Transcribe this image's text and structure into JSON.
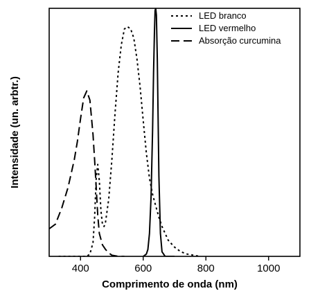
{
  "chart_data": {
    "type": "line",
    "title": "",
    "xlabel": "Comprimento de onda (nm)",
    "ylabel": "Intensidade (un. arbtr.)",
    "xlim": [
      300,
      1100
    ],
    "ylim": [
      0,
      1.08
    ],
    "x_ticks": [
      400,
      600,
      800,
      1000
    ],
    "y_ticks": [],
    "grid": false,
    "legend_position": "top-right",
    "series": [
      {
        "name": "LED branco",
        "line_style": "dotted",
        "color": "#000000",
        "x": [
          330,
          400,
          420,
          430,
          440,
          445,
          450,
          455,
          460,
          465,
          470,
          475,
          480,
          490,
          500,
          510,
          520,
          530,
          540,
          550,
          560,
          570,
          580,
          590,
          600,
          610,
          620,
          630,
          640,
          650,
          660,
          670,
          680,
          700,
          720,
          740,
          760,
          780
        ],
        "y": [
          0.0,
          0.0,
          0.0,
          0.01,
          0.06,
          0.17,
          0.34,
          0.4,
          0.33,
          0.2,
          0.14,
          0.13,
          0.15,
          0.25,
          0.42,
          0.62,
          0.8,
          0.92,
          0.99,
          1.0,
          0.99,
          0.95,
          0.86,
          0.74,
          0.59,
          0.45,
          0.34,
          0.27,
          0.22,
          0.17,
          0.13,
          0.1,
          0.07,
          0.04,
          0.02,
          0.01,
          0.005,
          0.0
        ]
      },
      {
        "name": "LED vermelho",
        "line_style": "solid",
        "color": "#000000",
        "x": [
          600,
          610,
          615,
          620,
          625,
          630,
          633,
          636,
          638,
          640,
          642,
          645,
          648,
          650,
          655,
          660,
          670,
          700
        ],
        "y": [
          0.0,
          0.01,
          0.03,
          0.1,
          0.26,
          0.55,
          0.8,
          0.98,
          1.07,
          1.08,
          1.05,
          0.86,
          0.55,
          0.35,
          0.1,
          0.02,
          0.0,
          0.0
        ]
      },
      {
        "name": "Absorção curcumina",
        "line_style": "dashed",
        "color": "#000000",
        "x": [
          300,
          320,
          340,
          360,
          380,
          390,
          400,
          410,
          420,
          430,
          440,
          445,
          450,
          455,
          460,
          470,
          480,
          490,
          500,
          520,
          540
        ],
        "y": [
          0.12,
          0.14,
          0.21,
          0.3,
          0.42,
          0.5,
          0.6,
          0.69,
          0.72,
          0.68,
          0.53,
          0.42,
          0.3,
          0.18,
          0.1,
          0.05,
          0.03,
          0.015,
          0.005,
          0.0,
          0.0
        ]
      }
    ]
  }
}
